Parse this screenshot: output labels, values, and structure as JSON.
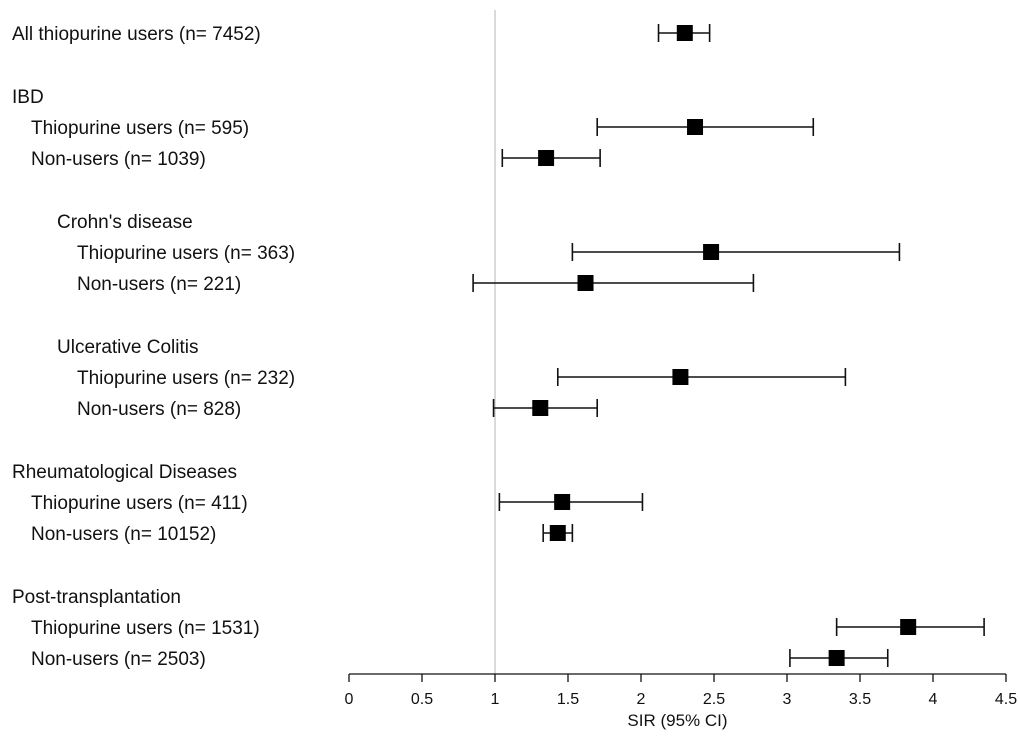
{
  "chart_data": {
    "type": "forest",
    "xlabel": "SIR (95% CI)",
    "xlim": [
      0,
      4.5
    ],
    "xticks": [
      "0",
      "0.5",
      "1",
      "1.5",
      "2",
      "2.5",
      "3",
      "3.5",
      "4",
      "4.5"
    ],
    "reference_line": 1,
    "grid": false,
    "rows": [
      {
        "label": "All thiopurine users (n= 7452)",
        "indent": 0,
        "estimate": 2.3,
        "lower": 2.12,
        "upper": 2.47
      },
      {
        "label": "IBD",
        "indent": 0,
        "heading": true
      },
      {
        "label": "Thiopurine users (n= 595)",
        "indent": 1,
        "estimate": 2.37,
        "lower": 1.7,
        "upper": 3.18
      },
      {
        "label": "Non-users (n= 1039)",
        "indent": 1,
        "estimate": 1.35,
        "lower": 1.05,
        "upper": 1.72
      },
      {
        "label": "Crohn's disease",
        "indent": 2,
        "heading": true
      },
      {
        "label": "Thiopurine users (n= 363)",
        "indent": 3,
        "estimate": 2.48,
        "lower": 1.53,
        "upper": 3.77
      },
      {
        "label": "Non-users (n= 221)",
        "indent": 3,
        "estimate": 1.62,
        "lower": 0.85,
        "upper": 2.77
      },
      {
        "label": "Ulcerative Colitis",
        "indent": 2,
        "heading": true
      },
      {
        "label": "Thiopurine users (n= 232)",
        "indent": 3,
        "estimate": 2.27,
        "lower": 1.43,
        "upper": 3.4
      },
      {
        "label": "Non-users (n= 828)",
        "indent": 3,
        "estimate": 1.31,
        "lower": 0.99,
        "upper": 1.7
      },
      {
        "label": "Rheumatological Diseases",
        "indent": 0,
        "heading": true
      },
      {
        "label": "Thiopurine users (n= 411)",
        "indent": 1,
        "estimate": 1.46,
        "lower": 1.03,
        "upper": 2.01
      },
      {
        "label": "Non-users (n= 10152)",
        "indent": 1,
        "estimate": 1.43,
        "lower": 1.33,
        "upper": 1.53
      },
      {
        "label": "Post-transplantation",
        "indent": 0,
        "heading": true
      },
      {
        "label": "Thiopurine users (n= 1531)",
        "indent": 1,
        "estimate": 3.83,
        "lower": 3.34,
        "upper": 4.35
      },
      {
        "label": "Non-users (n= 2503)",
        "indent": 1,
        "estimate": 3.34,
        "lower": 3.02,
        "upper": 3.69
      }
    ]
  }
}
